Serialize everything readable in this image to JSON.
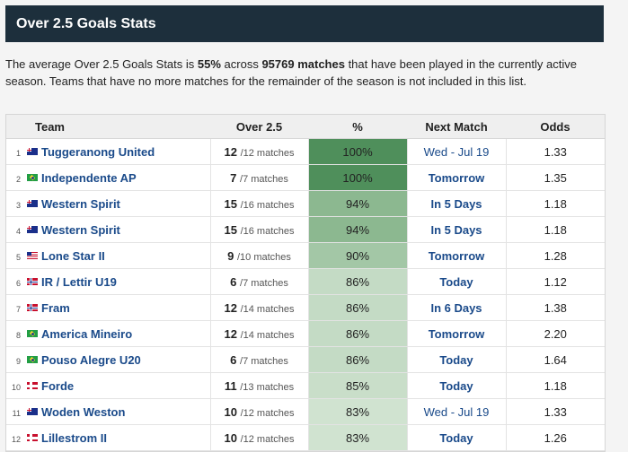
{
  "header": {
    "title": "Over 2.5 Goals Stats"
  },
  "description": {
    "p1": "The average Over 2.5 Goals Stats is ",
    "avg": "55%",
    "p2": " across ",
    "matches": "95769 matches",
    "p3": " that have been played in the currently active season. Teams that have no more matches for the remainder of the season is not included in this list."
  },
  "table": {
    "headers": {
      "team": "Team",
      "over": "Over 2.5",
      "pct": "%",
      "next": "Next Match",
      "odds": "Odds"
    },
    "rows": [
      {
        "rank": "1",
        "flag": "au",
        "team": "Tuggeranong United",
        "over": "12",
        "matches": "/12 matches",
        "pct": "100%",
        "pct_value": 100,
        "next": "Wed - Jul 19",
        "next_bold": false,
        "odds": "1.33"
      },
      {
        "rank": "2",
        "flag": "br",
        "team": "Independente AP",
        "over": "7",
        "matches": "/7 matches",
        "pct": "100%",
        "pct_value": 100,
        "next": "Tomorrow",
        "next_bold": true,
        "odds": "1.35"
      },
      {
        "rank": "3",
        "flag": "au",
        "team": "Western Spirit",
        "over": "15",
        "matches": "/16 matches",
        "pct": "94%",
        "pct_value": 94,
        "next": "In 5 Days",
        "next_bold": true,
        "odds": "1.18"
      },
      {
        "rank": "4",
        "flag": "au",
        "team": "Western Spirit",
        "over": "15",
        "matches": "/16 matches",
        "pct": "94%",
        "pct_value": 94,
        "next": "In 5 Days",
        "next_bold": true,
        "odds": "1.18"
      },
      {
        "rank": "5",
        "flag": "us",
        "team": "Lone Star II",
        "over": "9",
        "matches": "/10 matches",
        "pct": "90%",
        "pct_value": 90,
        "next": "Tomorrow",
        "next_bold": true,
        "odds": "1.28"
      },
      {
        "rank": "6",
        "flag": "is",
        "team": "IR / Lettir U19",
        "over": "6",
        "matches": "/7 matches",
        "pct": "86%",
        "pct_value": 86,
        "next": "Today",
        "next_bold": true,
        "odds": "1.12"
      },
      {
        "rank": "7",
        "flag": "is",
        "team": "Fram",
        "over": "12",
        "matches": "/14 matches",
        "pct": "86%",
        "pct_value": 86,
        "next": "In 6 Days",
        "next_bold": true,
        "odds": "1.38"
      },
      {
        "rank": "8",
        "flag": "br",
        "team": "America Mineiro",
        "over": "12",
        "matches": "/14 matches",
        "pct": "86%",
        "pct_value": 86,
        "next": "Tomorrow",
        "next_bold": true,
        "odds": "2.20"
      },
      {
        "rank": "9",
        "flag": "br",
        "team": "Pouso Alegre U20",
        "over": "6",
        "matches": "/7 matches",
        "pct": "86%",
        "pct_value": 86,
        "next": "Today",
        "next_bold": true,
        "odds": "1.64"
      },
      {
        "rank": "10",
        "flag": "no",
        "team": "Forde",
        "over": "11",
        "matches": "/13 matches",
        "pct": "85%",
        "pct_value": 85,
        "next": "Today",
        "next_bold": true,
        "odds": "1.18"
      },
      {
        "rank": "11",
        "flag": "au",
        "team": "Woden Weston",
        "over": "10",
        "matches": "/12 matches",
        "pct": "83%",
        "pct_value": 83,
        "next": "Wed - Jul 19",
        "next_bold": false,
        "odds": "1.33"
      },
      {
        "rank": "12",
        "flag": "no",
        "team": "Lillestrom II",
        "over": "10",
        "matches": "/12 matches",
        "pct": "83%",
        "pct_value": 83,
        "next": "Today",
        "next_bold": true,
        "odds": "1.26"
      }
    ]
  },
  "colors": {
    "header_bg": "#1d2f3c",
    "link": "#1a4a8a",
    "pct_100": "#4f8f5b",
    "pct_94": "#8cb890",
    "pct_90": "#a3c7a6",
    "pct_86": "#c4dbc5",
    "pct_85": "#c9dec9",
    "pct_83": "#d0e3d0"
  }
}
